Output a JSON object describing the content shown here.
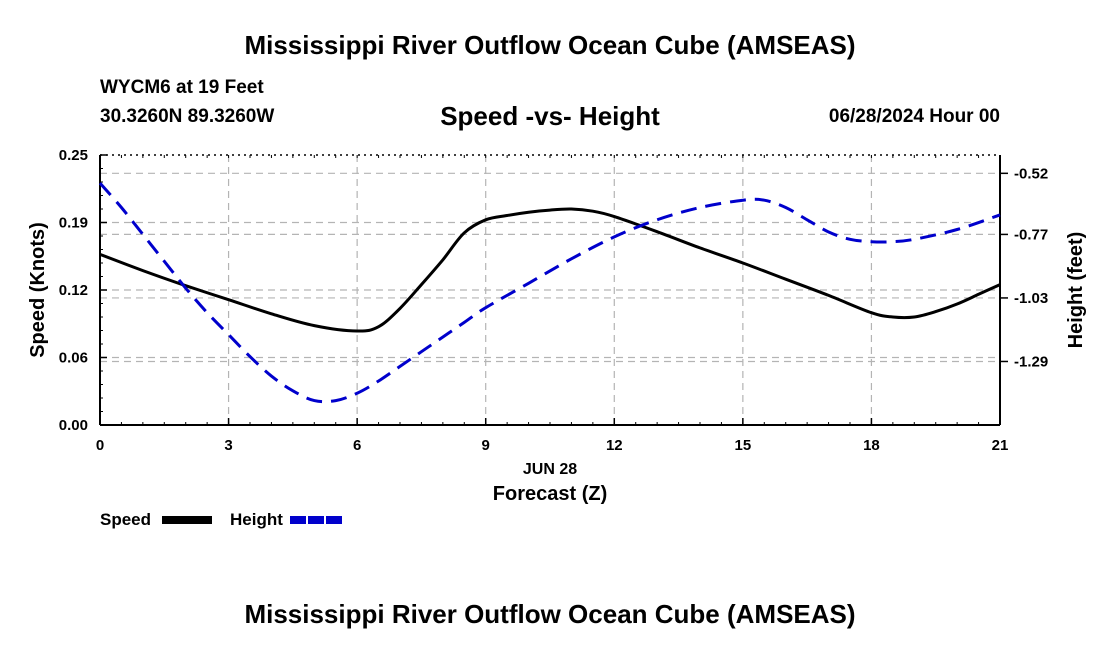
{
  "page": {
    "title_top": "Mississippi River Outflow Ocean Cube (AMSEAS)",
    "title_bottom": "Mississippi River Outflow Ocean Cube (AMSEAS)",
    "station": "WYCM6 at 19 Feet",
    "coords": "30.3260N  89.3260W",
    "subtitle": "Speed -vs- Height",
    "datetime": "06/28/2024 Hour 00"
  },
  "colors": {
    "speed": "#000000",
    "height": "#0000cc",
    "grid": "#b4b4b4"
  },
  "chart_data": {
    "type": "line",
    "title": "Speed -vs- Height",
    "xlabel": "Forecast (Z)",
    "xlabel_date": "JUN 28",
    "ylabel_left": "Speed (Knots)",
    "ylabel_right": "Height (feet)",
    "xlim": [
      0,
      21
    ],
    "ylim_left": [
      0,
      0.25
    ],
    "ylim_right": [
      -1.55,
      -0.445
    ],
    "x_ticks": [
      "0",
      "3",
      "6",
      "9",
      "12",
      "15",
      "18",
      "21"
    ],
    "y_ticks_left": [
      "0.00",
      "0.06",
      "0.12",
      "0.19",
      "0.25"
    ],
    "y_ticks_left_values": [
      0,
      0.0625,
      0.125,
      0.1875,
      0.25
    ],
    "y_ticks_right": [
      "-0.52",
      "-0.77",
      "-1.03",
      "-1.29"
    ],
    "y_ticks_right_values": [
      -0.52,
      -0.77,
      -1.03,
      -1.29
    ],
    "grid": true,
    "series": [
      {
        "name": "Speed",
        "axis": "left",
        "style": "solid",
        "x": [
          0,
          1,
          2,
          3,
          4,
          5,
          6,
          6.5,
          7,
          7.5,
          8,
          8.5,
          9,
          9.5,
          10,
          10.5,
          11,
          11.5,
          12,
          13,
          14,
          15,
          16,
          17,
          18,
          18.5,
          19,
          19.5,
          20,
          20.5,
          21
        ],
        "values": [
          0.158,
          0.143,
          0.129,
          0.116,
          0.103,
          0.092,
          0.087,
          0.091,
          0.108,
          0.13,
          0.153,
          0.178,
          0.19,
          0.194,
          0.197,
          0.199,
          0.2,
          0.198,
          0.193,
          0.179,
          0.164,
          0.15,
          0.135,
          0.12,
          0.104,
          0.1,
          0.1,
          0.105,
          0.112,
          0.121,
          0.13
        ]
      },
      {
        "name": "Height",
        "axis": "right",
        "style": "dashed",
        "x": [
          0,
          0.5,
          1,
          1.5,
          2,
          2.5,
          3,
          3.5,
          4,
          4.5,
          5,
          5.5,
          6,
          6.5,
          7,
          7.5,
          8,
          8.5,
          9,
          10,
          11,
          12,
          13,
          14,
          15,
          15.5,
          16,
          16.5,
          17,
          17.5,
          18,
          18.5,
          19,
          20,
          21
        ],
        "values": [
          -0.56,
          -0.66,
          -0.77,
          -0.88,
          -0.99,
          -1.09,
          -1.18,
          -1.27,
          -1.35,
          -1.41,
          -1.45,
          -1.45,
          -1.42,
          -1.37,
          -1.31,
          -1.25,
          -1.19,
          -1.13,
          -1.07,
          -0.97,
          -0.87,
          -0.78,
          -0.71,
          -0.66,
          -0.63,
          -0.63,
          -0.66,
          -0.71,
          -0.76,
          -0.79,
          -0.8,
          -0.8,
          -0.79,
          -0.75,
          -0.69
        ]
      }
    ]
  },
  "legend": {
    "speed_label": "Speed",
    "height_label": "Height"
  }
}
